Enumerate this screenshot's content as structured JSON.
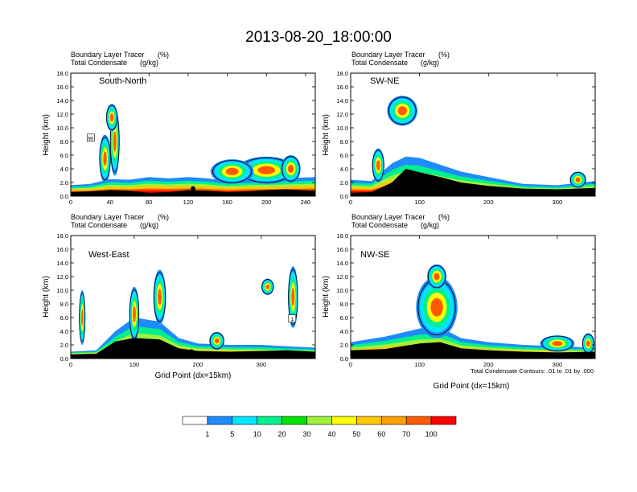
{
  "figure_title": "2013-08-20_18:00:00",
  "colors": {
    "levels": [
      "#ffffff",
      "#1e8cff",
      "#00e6ff",
      "#00f08c",
      "#00e600",
      "#a0f03c",
      "#ffff00",
      "#ffc800",
      "#ffa000",
      "#ff5a00",
      "#ff0000"
    ],
    "contour": "#000000"
  },
  "colorbar": {
    "labels": [
      "1",
      "5",
      "10",
      "20",
      "30",
      "40",
      "50",
      "60",
      "70",
      "100"
    ]
  },
  "chart_data": [
    {
      "type": "contour",
      "title": "South-North",
      "left_labels": [
        "Boundary Layer Tracer",
        "Total Condensate"
      ],
      "right_labels": [
        "(%)",
        "(g/kg)"
      ],
      "ylabel": "Height (km)",
      "xlabel": "",
      "xlim": [
        0,
        250
      ],
      "ylim": [
        0,
        18
      ],
      "xticks": [
        "0",
        "40",
        "80",
        "120",
        "160",
        "200",
        "240"
      ],
      "xtick_values": [
        0,
        40,
        80,
        120,
        160,
        200,
        240
      ],
      "yticks": [
        "0.0",
        "2.0",
        "4.0",
        "6.0",
        "8.0",
        "10.0",
        "12.0",
        "14.0",
        "16.0",
        "18.0"
      ],
      "terrain": [
        [
          0,
          0.6
        ],
        [
          20,
          0.7
        ],
        [
          40,
          0.9
        ],
        [
          60,
          0.8
        ],
        [
          80,
          0.5
        ],
        [
          100,
          0.6
        ],
        [
          120,
          0.9
        ],
        [
          140,
          0.8
        ],
        [
          160,
          0.6
        ],
        [
          180,
          0.7
        ],
        [
          200,
          0.9
        ],
        [
          220,
          1.0
        ],
        [
          250,
          0.8
        ]
      ],
      "bl_top": [
        [
          0,
          1.6
        ],
        [
          20,
          1.8
        ],
        [
          40,
          2.5
        ],
        [
          60,
          2.4
        ],
        [
          80,
          2.8
        ],
        [
          100,
          2.6
        ],
        [
          120,
          2.8
        ],
        [
          140,
          2.6
        ],
        [
          160,
          2.2
        ],
        [
          180,
          2.4
        ],
        [
          200,
          2.5
        ],
        [
          220,
          2.6
        ],
        [
          250,
          2.8
        ]
      ],
      "marker": [
        125,
        1.1
      ],
      "anomaly_label": "90"
    },
    {
      "type": "contour",
      "title": "SW-NE",
      "left_labels": [
        "Boundary Layer Tracer",
        "Total Condensate"
      ],
      "right_labels": [
        "(%)",
        "(g/kg)"
      ],
      "ylabel": "Height (km)",
      "xlabel": "",
      "xlim": [
        0,
        355
      ],
      "ylim": [
        0,
        18
      ],
      "xticks": [
        "0",
        "100",
        "200",
        "300"
      ],
      "xtick_values": [
        0,
        100,
        200,
        300
      ],
      "yticks": [
        "0.0",
        "2.0",
        "4.0",
        "6.0",
        "8.0",
        "10.0",
        "12.0",
        "14.0",
        "16.0",
        "18.0"
      ],
      "terrain": [
        [
          0,
          0.5
        ],
        [
          30,
          0.6
        ],
        [
          60,
          2.0
        ],
        [
          80,
          4.0
        ],
        [
          100,
          3.5
        ],
        [
          130,
          2.8
        ],
        [
          160,
          2.0
        ],
        [
          200,
          1.5
        ],
        [
          250,
          1.1
        ],
        [
          300,
          1.0
        ],
        [
          355,
          1.2
        ]
      ],
      "bl_top": [
        [
          0,
          2.4
        ],
        [
          30,
          2.2
        ],
        [
          60,
          4.8
        ],
        [
          80,
          5.8
        ],
        [
          100,
          5.6
        ],
        [
          130,
          4.6
        ],
        [
          160,
          3.6
        ],
        [
          200,
          2.8
        ],
        [
          250,
          1.8
        ],
        [
          300,
          1.6
        ],
        [
          355,
          2.2
        ]
      ],
      "marker": [
        178,
        1.0
      ]
    },
    {
      "type": "contour",
      "title": "West-East",
      "left_labels": [
        "Boundary Layer Tracer",
        "Total Condensate"
      ],
      "right_labels": [
        "(%)",
        "(g/kg)"
      ],
      "ylabel": "Height (km)",
      "xlabel": "Grid Point (dx=15km)",
      "xlim": [
        0,
        385
      ],
      "ylim": [
        0,
        18
      ],
      "xticks": [
        "0",
        "100",
        "200",
        "300"
      ],
      "xtick_values": [
        0,
        100,
        200,
        300
      ],
      "yticks": [
        "0.0",
        "2.0",
        "4.0",
        "6.0",
        "8.0",
        "10.0",
        "12.0",
        "14.0",
        "16.0",
        "18.0"
      ],
      "terrain": [
        [
          0,
          0.6
        ],
        [
          40,
          0.7
        ],
        [
          70,
          2.5
        ],
        [
          100,
          3.0
        ],
        [
          140,
          2.8
        ],
        [
          170,
          1.5
        ],
        [
          200,
          1.1
        ],
        [
          250,
          1.0
        ],
        [
          300,
          1.1
        ],
        [
          340,
          1.2
        ],
        [
          385,
          1.0
        ]
      ],
      "bl_top": [
        [
          0,
          1.0
        ],
        [
          40,
          1.2
        ],
        [
          70,
          4.0
        ],
        [
          100,
          6.0
        ],
        [
          140,
          5.4
        ],
        [
          170,
          3.0
        ],
        [
          200,
          2.2
        ],
        [
          250,
          2.0
        ],
        [
          300,
          2.0
        ],
        [
          340,
          1.8
        ],
        [
          385,
          1.6
        ]
      ],
      "marker": [
        190,
        1.0
      ],
      "anomaly_label": "1"
    },
    {
      "type": "contour",
      "title": "NW-SE",
      "left_labels": [
        "Boundary Layer Tracer",
        "Total Condensate"
      ],
      "right_labels": [
        "(%)",
        "(g/kg)"
      ],
      "ylabel": "Height (km)",
      "xlabel": "Grid Point (dx=15km)",
      "xlim": [
        0,
        355
      ],
      "ylim": [
        0,
        18
      ],
      "xticks": [
        "0",
        "100",
        "200",
        "300"
      ],
      "xtick_values": [
        0,
        100,
        200,
        300
      ],
      "yticks": [
        "0.0",
        "2.0",
        "4.0",
        "6.0",
        "8.0",
        "10.0",
        "12.0",
        "14.0",
        "16.0",
        "18.0"
      ],
      "terrain": [
        [
          0,
          1.2
        ],
        [
          50,
          1.4
        ],
        [
          100,
          2.2
        ],
        [
          130,
          2.4
        ],
        [
          160,
          1.5
        ],
        [
          200,
          1.2
        ],
        [
          250,
          1.0
        ],
        [
          300,
          0.9
        ],
        [
          355,
          1.0
        ]
      ],
      "bl_top": [
        [
          0,
          2.4
        ],
        [
          50,
          3.2
        ],
        [
          100,
          4.4
        ],
        [
          130,
          4.6
        ],
        [
          160,
          3.0
        ],
        [
          200,
          2.4
        ],
        [
          250,
          2.0
        ],
        [
          300,
          1.8
        ],
        [
          355,
          1.6
        ]
      ],
      "marker": [
        178,
        1.0
      ],
      "contour_info": "Total Condensate Contours: .01 to .01 by .000"
    }
  ]
}
